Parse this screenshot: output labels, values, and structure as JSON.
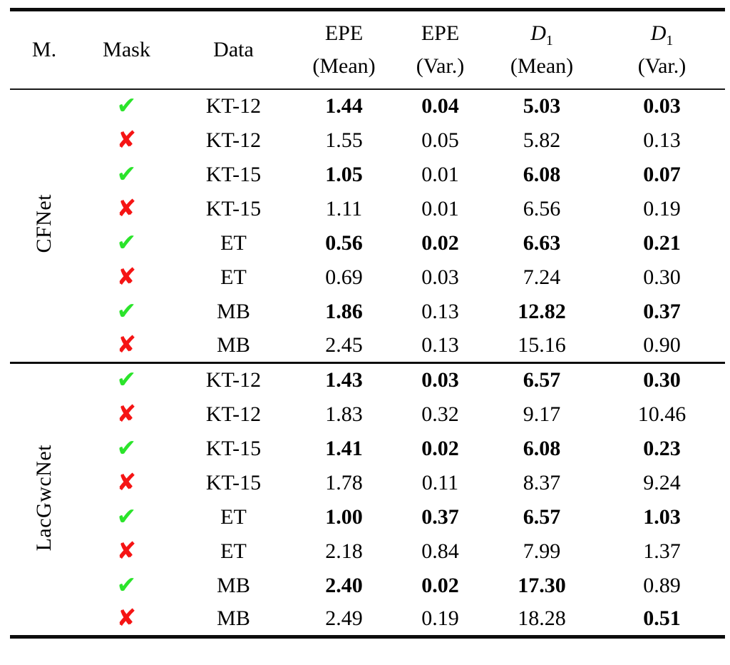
{
  "colors": {
    "background": "#ffffff",
    "text": "#000000",
    "rule": "#0d0d0d",
    "check_green": "#2be42b",
    "cross_red": "#f51414"
  },
  "mask_icons": {
    "check": "✔",
    "cross": "✘"
  },
  "table": {
    "headers": {
      "model": "M.",
      "mask": "Mask",
      "data": "Data",
      "cols": [
        {
          "top": "EPE",
          "sub": "",
          "bottom": "(Mean)"
        },
        {
          "top": "EPE",
          "sub": "",
          "bottom": "(Var.)"
        },
        {
          "top": "D",
          "sub": "1",
          "bottom": "(Mean)"
        },
        {
          "top": "D",
          "sub": "1",
          "bottom": "(Var.)"
        }
      ]
    },
    "groups": [
      {
        "model": "CFNet"
      },
      {
        "model": "LacGwcNet"
      }
    ],
    "rows": [
      {
        "mask": "check",
        "data": "KT-12",
        "values": [
          "1.44",
          "0.04",
          "5.03",
          "0.03"
        ],
        "bold": [
          true,
          true,
          true,
          true
        ]
      },
      {
        "mask": "cross",
        "data": "KT-12",
        "values": [
          "1.55",
          "0.05",
          "5.82",
          "0.13"
        ],
        "bold": [
          false,
          false,
          false,
          false
        ]
      },
      {
        "mask": "check",
        "data": "KT-15",
        "values": [
          "1.05",
          "0.01",
          "6.08",
          "0.07"
        ],
        "bold": [
          true,
          false,
          true,
          true
        ]
      },
      {
        "mask": "cross",
        "data": "KT-15",
        "values": [
          "1.11",
          "0.01",
          "6.56",
          "0.19"
        ],
        "bold": [
          false,
          false,
          false,
          false
        ]
      },
      {
        "mask": "check",
        "data": "ET",
        "values": [
          "0.56",
          "0.02",
          "6.63",
          "0.21"
        ],
        "bold": [
          true,
          true,
          true,
          true
        ]
      },
      {
        "mask": "cross",
        "data": "ET",
        "values": [
          "0.69",
          "0.03",
          "7.24",
          "0.30"
        ],
        "bold": [
          false,
          false,
          false,
          false
        ]
      },
      {
        "mask": "check",
        "data": "MB",
        "values": [
          "1.86",
          "0.13",
          "12.82",
          "0.37"
        ],
        "bold": [
          true,
          false,
          true,
          true
        ]
      },
      {
        "mask": "cross",
        "data": "MB",
        "values": [
          "2.45",
          "0.13",
          "15.16",
          "0.90"
        ],
        "bold": [
          false,
          false,
          false,
          false
        ]
      },
      {
        "mask": "check",
        "data": "KT-12",
        "values": [
          "1.43",
          "0.03",
          "6.57",
          "0.30"
        ],
        "bold": [
          true,
          true,
          true,
          true
        ]
      },
      {
        "mask": "cross",
        "data": "KT-12",
        "values": [
          "1.83",
          "0.32",
          "9.17",
          "10.46"
        ],
        "bold": [
          false,
          false,
          false,
          false
        ]
      },
      {
        "mask": "check",
        "data": "KT-15",
        "values": [
          "1.41",
          "0.02",
          "6.08",
          "0.23"
        ],
        "bold": [
          true,
          true,
          true,
          true
        ]
      },
      {
        "mask": "cross",
        "data": "KT-15",
        "values": [
          "1.78",
          "0.11",
          "8.37",
          "9.24"
        ],
        "bold": [
          false,
          false,
          false,
          false
        ]
      },
      {
        "mask": "check",
        "data": "ET",
        "values": [
          "1.00",
          "0.37",
          "6.57",
          "1.03"
        ],
        "bold": [
          true,
          true,
          true,
          true
        ]
      },
      {
        "mask": "cross",
        "data": "ET",
        "values": [
          "2.18",
          "0.84",
          "7.99",
          "1.37"
        ],
        "bold": [
          false,
          false,
          false,
          false
        ]
      },
      {
        "mask": "check",
        "data": "MB",
        "values": [
          "2.40",
          "0.02",
          "17.30",
          "0.89"
        ],
        "bold": [
          true,
          true,
          true,
          false
        ]
      },
      {
        "mask": "cross",
        "data": "MB",
        "values": [
          "2.49",
          "0.19",
          "18.28",
          "0.51"
        ],
        "bold": [
          false,
          false,
          false,
          true
        ]
      }
    ]
  }
}
